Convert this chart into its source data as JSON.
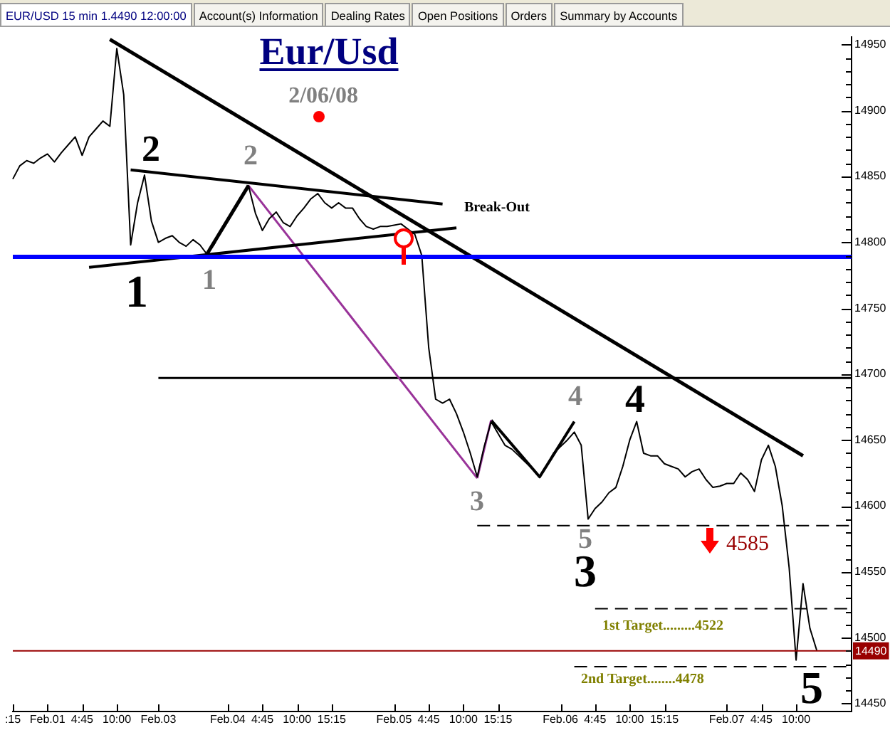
{
  "chart_data": {
    "type": "line",
    "title": "Eur/Usd",
    "subtitle": "2/06/08",
    "marker": "none",
    "categories": [
      ":15",
      null,
      null,
      null,
      null,
      "Feb.01",
      null,
      null,
      null,
      null,
      "4:45",
      null,
      null,
      null,
      null,
      "10:00",
      null,
      null,
      null,
      null,
      null,
      "Feb.03",
      null,
      null,
      null,
      null,
      null,
      null,
      null,
      null,
      null,
      "Feb.04",
      null,
      null,
      null,
      null,
      "4:45",
      null,
      null,
      null,
      null,
      "10:00",
      null,
      null,
      null,
      null,
      "15:15",
      null,
      null,
      null,
      null,
      null,
      null,
      null,
      null,
      "Feb.05",
      null,
      null,
      null,
      null,
      "4:45",
      null,
      null,
      null,
      null,
      "10:00",
      null,
      null,
      null,
      null,
      "15:15",
      null,
      null,
      null,
      null,
      null,
      null,
      null,
      null,
      "Feb.06",
      null,
      null,
      null,
      null,
      "4:45",
      null,
      null,
      null,
      null,
      "10:00",
      null,
      null,
      null,
      null,
      "15:15",
      null,
      null,
      null,
      null,
      null,
      null,
      null,
      null,
      "Feb.07",
      null,
      null,
      null,
      null,
      "4:45",
      null,
      null,
      null,
      null,
      "10:00",
      null,
      null,
      null,
      null,
      null,
      null,
      null,
      null
    ],
    "ylim": [
      14444,
      14956
    ],
    "yticks": [
      14450,
      {
        "value": 14460,
        "label": null
      },
      {
        "value": 14470,
        "label": null
      },
      {
        "value": 14480,
        "label": null
      },
      {
        "value": 14490,
        "label": null
      },
      14500,
      {
        "value": 14510,
        "label": null
      },
      {
        "value": 14520,
        "label": null
      },
      {
        "value": 14530,
        "label": null
      },
      {
        "value": 14540,
        "label": null
      },
      14550,
      {
        "value": 14560,
        "label": null
      },
      {
        "value": 14570,
        "label": null
      },
      {
        "value": 14580,
        "label": null
      },
      {
        "value": 14590,
        "label": null
      },
      14600,
      {
        "value": 14610,
        "label": null
      },
      {
        "value": 14620,
        "label": null
      },
      {
        "value": 14630,
        "label": null
      },
      {
        "value": 14640,
        "label": null
      },
      14650,
      {
        "value": 14660,
        "label": null
      },
      {
        "value": 14670,
        "label": null
      },
      {
        "value": 14680,
        "label": null
      },
      {
        "value": 14690,
        "label": null
      },
      14700,
      {
        "value": 14710,
        "label": null
      },
      {
        "value": 14720,
        "label": null
      },
      {
        "value": 14730,
        "label": null
      },
      {
        "value": 14740,
        "label": null
      },
      14750,
      {
        "value": 14760,
        "label": null
      },
      {
        "value": 14770,
        "label": null
      },
      {
        "value": 14780,
        "label": null
      },
      {
        "value": 14790,
        "label": null
      },
      14800,
      {
        "value": 14810,
        "label": null
      },
      {
        "value": 14820,
        "label": null
      },
      {
        "value": 14830,
        "label": null
      },
      {
        "value": 14840,
        "label": null
      },
      14850,
      {
        "value": 14860,
        "label": null
      },
      {
        "value": 14870,
        "label": null
      },
      {
        "value": 14880,
        "label": null
      },
      {
        "value": 14890,
        "label": null
      },
      14900,
      {
        "value": 14910,
        "label": null
      },
      {
        "value": 14920,
        "label": null
      },
      {
        "value": 14930,
        "label": null
      },
      {
        "value": 14940,
        "label": null
      },
      14950
    ],
    "series": [
      {
        "color": "#000000",
        "values": [
          14848,
          14858,
          14862,
          14860,
          14864,
          14867,
          14861,
          14868,
          14874,
          14880,
          14866,
          14880,
          14886,
          14892,
          14888,
          14947,
          14912,
          14798,
          14830,
          14851,
          14816,
          14800,
          14803,
          14805,
          14800,
          14797,
          14802,
          14798,
          14791,
          14798,
          14808,
          14816,
          14825,
          14835,
          14843,
          14822,
          14809,
          14818,
          14823,
          14815,
          14812,
          14820,
          14826,
          14833,
          14837,
          14830,
          14826,
          14830,
          14826,
          14826,
          14818,
          14812,
          14810,
          14812,
          14812,
          14813,
          14814,
          14810,
          14806,
          14790,
          14720,
          14681,
          14678,
          14681,
          14670,
          14656,
          14640,
          14622,
          14645,
          14664,
          14655,
          14646,
          14643,
          14638,
          14633,
          14628,
          14622,
          14630,
          14640,
          14645,
          14650,
          14656,
          14646,
          14590,
          14598,
          14603,
          14610,
          14614,
          14630,
          14650,
          14664,
          14640,
          14638,
          14638,
          14632,
          14630,
          14628,
          14622,
          14626,
          14628,
          14620,
          14614,
          14615,
          14617,
          14617,
          14625,
          14620,
          14611,
          14635,
          14646,
          14630,
          14600,
          14553,
          14483,
          14541,
          14507,
          14490,
          null,
          null,
          null,
          null,
          null
        ]
      },
      {
        "color": "#000000",
        "values": [
          null,
          null,
          null,
          null,
          null,
          null,
          null,
          null,
          null,
          null,
          null,
          null,
          null,
          null,
          14954,
          null,
          null,
          null,
          null,
          null,
          null,
          null,
          null,
          null,
          null,
          null,
          null,
          null,
          null,
          null,
          null,
          null,
          null,
          null,
          null,
          null,
          null,
          null,
          null,
          null,
          null,
          null,
          null,
          null,
          null,
          null,
          null,
          null,
          null,
          null,
          null,
          null,
          null,
          null,
          null,
          null,
          null,
          null,
          null,
          null,
          null,
          null,
          null,
          null,
          null,
          null,
          null,
          null,
          null,
          null,
          null,
          null,
          null,
          null,
          null,
          null,
          null,
          null,
          null,
          null,
          null,
          null,
          null,
          null,
          null,
          null,
          null,
          null,
          null,
          null,
          null,
          null,
          null,
          null,
          null,
          null,
          null,
          null,
          null,
          null,
          null,
          null,
          null,
          null,
          null,
          null,
          null,
          null,
          null,
          null,
          null,
          null,
          null,
          null,
          14638,
          null,
          null,
          null,
          null,
          null,
          null,
          null
        ]
      },
      {
        "color": "#000000",
        "values": [
          null,
          null,
          null,
          null,
          null,
          null,
          null,
          null,
          null,
          null,
          null,
          null,
          null,
          null,
          null,
          null,
          null,
          14855,
          null,
          null,
          null,
          null,
          null,
          null,
          null,
          null,
          null,
          null,
          null,
          null,
          null,
          null,
          null,
          null,
          null,
          null,
          null,
          null,
          null,
          null,
          null,
          null,
          null,
          null,
          null,
          null,
          null,
          null,
          null,
          null,
          null,
          null,
          null,
          null,
          null,
          null,
          null,
          null,
          null,
          null,
          null,
          null,
          14829,
          null,
          null,
          null,
          null,
          null,
          null,
          null,
          null,
          null,
          null,
          null,
          null,
          null,
          null,
          null,
          null,
          null,
          null,
          null,
          null,
          null,
          null,
          null,
          null,
          null,
          null,
          null,
          null,
          null,
          null,
          null,
          null,
          null,
          null,
          null,
          null,
          null,
          null,
          null,
          null,
          null,
          null,
          null,
          null,
          null,
          null,
          null,
          null,
          null,
          null,
          null,
          null,
          null,
          null,
          null,
          null,
          null,
          null,
          null
        ]
      },
      {
        "color": "#000000",
        "values": [
          null,
          null,
          null,
          null,
          null,
          null,
          null,
          null,
          null,
          null,
          null,
          14781,
          null,
          null,
          null,
          null,
          null,
          null,
          null,
          null,
          null,
          null,
          null,
          null,
          null,
          null,
          null,
          null,
          null,
          null,
          null,
          null,
          null,
          null,
          null,
          null,
          null,
          null,
          null,
          null,
          null,
          null,
          null,
          null,
          null,
          null,
          null,
          null,
          null,
          null,
          null,
          null,
          null,
          null,
          null,
          null,
          null,
          null,
          null,
          null,
          null,
          null,
          null,
          null,
          14811,
          null,
          null,
          null,
          null,
          null,
          null,
          null,
          null,
          null,
          null,
          null,
          null,
          null,
          null,
          null,
          null,
          null,
          null,
          null,
          null,
          null,
          null,
          null,
          null,
          null,
          null,
          null,
          null,
          null,
          null,
          null,
          null,
          null,
          null,
          null,
          null,
          null,
          null,
          null,
          null,
          null,
          null,
          null,
          null,
          null,
          null,
          null,
          null,
          null,
          null,
          null,
          null,
          null,
          null,
          null,
          null,
          null
        ]
      },
      {
        "color": "#000000",
        "values": [
          null,
          null,
          null,
          null,
          null,
          null,
          null,
          null,
          null,
          null,
          null,
          null,
          null,
          null,
          null,
          null,
          null,
          null,
          null,
          null,
          null,
          null,
          null,
          null,
          null,
          null,
          null,
          null,
          14791,
          null,
          null,
          null,
          null,
          null,
          14843,
          null,
          null,
          null,
          null,
          null,
          null,
          null,
          null,
          null,
          null,
          null,
          null,
          null,
          null,
          null,
          null,
          null,
          null,
          null,
          null,
          null,
          null,
          null,
          null,
          null,
          null,
          null,
          null,
          null,
          null,
          null,
          null,
          null,
          null,
          null,
          null,
          null,
          null,
          null,
          null,
          null,
          null,
          null,
          null,
          null,
          null,
          null,
          null,
          null,
          null,
          null,
          null,
          null,
          null,
          null,
          null,
          null,
          null,
          null,
          null,
          null,
          null,
          null,
          null,
          null,
          null,
          null,
          null,
          null,
          null,
          null,
          null,
          null,
          null,
          null,
          null,
          null,
          null,
          null,
          null,
          null,
          null,
          null,
          null,
          null,
          null,
          null
        ]
      },
      {
        "color": "#993399",
        "values": [
          null,
          null,
          null,
          null,
          null,
          null,
          null,
          null,
          null,
          null,
          null,
          null,
          null,
          null,
          null,
          null,
          null,
          null,
          null,
          null,
          null,
          null,
          null,
          null,
          null,
          null,
          null,
          null,
          null,
          null,
          null,
          null,
          null,
          null,
          14843,
          null,
          null,
          null,
          null,
          null,
          null,
          null,
          null,
          null,
          null,
          null,
          null,
          null,
          null,
          null,
          null,
          null,
          null,
          null,
          null,
          null,
          null,
          null,
          null,
          null,
          null,
          null,
          null,
          null,
          null,
          null,
          null,
          14621,
          null,
          null,
          null,
          null,
          null,
          null,
          null,
          null,
          null,
          null,
          null,
          null,
          null,
          null,
          null,
          null,
          null,
          null,
          null,
          null,
          null,
          null,
          null,
          null,
          null,
          null,
          null,
          null,
          null,
          null,
          null,
          null,
          null,
          null,
          null,
          null,
          null,
          null,
          null,
          null,
          null,
          null,
          null,
          null,
          null,
          null,
          null,
          null,
          null,
          null,
          null,
          null,
          null,
          null
        ]
      },
      {
        "color": "#993399",
        "values": [
          null,
          null,
          null,
          null,
          null,
          null,
          null,
          null,
          null,
          null,
          null,
          null,
          null,
          null,
          null,
          null,
          null,
          null,
          null,
          null,
          null,
          null,
          null,
          null,
          null,
          null,
          null,
          null,
          null,
          null,
          null,
          null,
          null,
          null,
          null,
          null,
          null,
          null,
          null,
          null,
          null,
          null,
          null,
          null,
          null,
          null,
          null,
          null,
          null,
          null,
          null,
          null,
          null,
          null,
          null,
          null,
          null,
          null,
          null,
          null,
          null,
          null,
          null,
          null,
          null,
          null,
          null,
          14621,
          null,
          14665,
          null,
          null,
          null,
          null,
          null,
          null,
          null,
          null,
          null,
          null,
          null,
          null,
          null,
          null,
          null,
          null,
          null,
          null,
          null,
          null,
          null,
          null,
          null,
          null,
          null,
          null,
          null,
          null,
          null,
          null,
          null,
          null,
          null,
          null,
          null,
          null,
          null,
          null,
          null,
          null,
          null,
          null,
          null,
          null,
          null,
          null,
          null,
          null,
          null,
          null,
          null,
          null
        ]
      },
      {
        "color": "#000000",
        "values": [
          null,
          null,
          null,
          null,
          null,
          null,
          null,
          null,
          null,
          null,
          null,
          null,
          null,
          null,
          null,
          null,
          null,
          null,
          null,
          null,
          null,
          null,
          null,
          null,
          null,
          null,
          null,
          null,
          null,
          null,
          null,
          null,
          null,
          null,
          null,
          null,
          null,
          null,
          null,
          null,
          null,
          null,
          null,
          null,
          null,
          null,
          null,
          null,
          null,
          null,
          null,
          null,
          null,
          null,
          null,
          null,
          null,
          null,
          null,
          null,
          null,
          null,
          null,
          null,
          null,
          null,
          null,
          null,
          null,
          14665,
          null,
          null,
          null,
          null,
          null,
          null,
          14622,
          null,
          null,
          null,
          null,
          14664,
          null,
          null,
          null,
          null,
          null,
          null,
          null,
          null,
          null,
          null,
          null,
          null,
          null,
          null,
          null,
          null,
          null,
          null,
          null,
          null,
          null,
          null,
          null,
          null,
          null,
          null,
          null,
          null,
          null,
          null,
          null,
          null,
          null,
          null,
          null,
          null,
          null,
          null,
          null,
          null
        ]
      },
      {
        "color": "#000000",
        "values": [
          null,
          null,
          null,
          null,
          null,
          null,
          null,
          null,
          null,
          null,
          null,
          null,
          null,
          null,
          null,
          null,
          null,
          null,
          null,
          null,
          null,
          14697,
          null,
          null,
          null,
          null,
          null,
          null,
          null,
          null,
          null,
          null,
          null,
          null,
          null,
          null,
          null,
          null,
          null,
          null,
          null,
          null,
          null,
          null,
          null,
          null,
          null,
          null,
          null,
          null,
          null,
          null,
          null,
          null,
          null,
          null,
          null,
          null,
          null,
          null,
          null,
          null,
          null,
          null,
          null,
          null,
          null,
          null,
          null,
          null,
          null,
          null,
          null,
          null,
          null,
          null,
          null,
          null,
          null,
          null,
          null,
          null,
          null,
          null,
          null,
          null,
          null,
          null,
          null,
          null,
          null,
          null,
          null,
          null,
          null,
          null,
          null,
          null,
          null,
          null,
          null,
          null,
          null,
          null,
          null,
          null,
          null,
          null,
          null,
          null,
          null,
          null,
          null,
          null,
          null,
          null,
          null,
          null,
          null,
          null,
          null,
          14697
        ]
      },
      {
        "color": "#000000",
        "line_style": "dashed",
        "values": [
          null,
          null,
          null,
          null,
          null,
          null,
          null,
          null,
          null,
          null,
          null,
          null,
          null,
          null,
          null,
          null,
          null,
          null,
          null,
          null,
          null,
          null,
          null,
          null,
          null,
          null,
          null,
          null,
          null,
          null,
          null,
          null,
          null,
          null,
          null,
          null,
          null,
          null,
          null,
          null,
          null,
          null,
          null,
          null,
          null,
          null,
          null,
          null,
          null,
          null,
          null,
          null,
          null,
          null,
          null,
          null,
          null,
          null,
          null,
          null,
          null,
          null,
          null,
          null,
          null,
          null,
          null,
          14585,
          null,
          null,
          null,
          null,
          null,
          null,
          null,
          null,
          null,
          null,
          null,
          null,
          null,
          null,
          null,
          null,
          null,
          null,
          null,
          null,
          null,
          null,
          null,
          null,
          null,
          null,
          null,
          null,
          null,
          null,
          null,
          null,
          null,
          null,
          null,
          null,
          null,
          null,
          null,
          null,
          null,
          null,
          null,
          null,
          null,
          null,
          null,
          null,
          null,
          null,
          null,
          null,
          null,
          14585
        ]
      },
      {
        "color": "#000000",
        "line_style": "dashed",
        "values": [
          null,
          null,
          null,
          null,
          null,
          null,
          null,
          null,
          null,
          null,
          null,
          null,
          null,
          null,
          null,
          null,
          null,
          null,
          null,
          null,
          null,
          null,
          null,
          null,
          null,
          null,
          null,
          null,
          null,
          null,
          null,
          null,
          null,
          null,
          null,
          null,
          null,
          null,
          null,
          null,
          null,
          null,
          null,
          null,
          null,
          null,
          null,
          null,
          null,
          null,
          null,
          null,
          null,
          null,
          null,
          null,
          null,
          null,
          null,
          null,
          null,
          null,
          null,
          null,
          null,
          null,
          null,
          null,
          null,
          null,
          null,
          null,
          null,
          null,
          null,
          null,
          null,
          null,
          null,
          null,
          null,
          null,
          null,
          null,
          14522,
          null,
          null,
          null,
          null,
          null,
          null,
          null,
          null,
          null,
          null,
          null,
          null,
          null,
          null,
          null,
          null,
          null,
          null,
          null,
          null,
          null,
          null,
          null,
          null,
          null,
          null,
          null,
          null,
          null,
          null,
          null,
          null,
          null,
          null,
          null,
          null,
          14522
        ]
      },
      {
        "color": "#000000",
        "line_style": "dashed",
        "values": [
          null,
          null,
          null,
          null,
          null,
          null,
          null,
          null,
          null,
          null,
          null,
          null,
          null,
          null,
          null,
          null,
          null,
          null,
          null,
          null,
          null,
          null,
          null,
          null,
          null,
          null,
          null,
          null,
          null,
          null,
          null,
          null,
          null,
          null,
          null,
          null,
          null,
          null,
          null,
          null,
          null,
          null,
          null,
          null,
          null,
          null,
          null,
          null,
          null,
          null,
          null,
          null,
          null,
          null,
          null,
          null,
          null,
          null,
          null,
          null,
          null,
          null,
          null,
          null,
          null,
          null,
          null,
          null,
          null,
          null,
          null,
          null,
          null,
          null,
          null,
          null,
          null,
          null,
          null,
          null,
          null,
          14478,
          null,
          null,
          null,
          null,
          null,
          null,
          null,
          null,
          null,
          null,
          null,
          null,
          null,
          null,
          null,
          null,
          null,
          null,
          null,
          null,
          null,
          null,
          null,
          null,
          null,
          null,
          null,
          null,
          null,
          null,
          null,
          null,
          null,
          null,
          null,
          null,
          null,
          null,
          null,
          14478
        ]
      }
    ],
    "ref_lines": [
      {
        "axis": "y",
        "value": 14789,
        "color": "#0000ff"
      },
      {
        "axis": "y",
        "value": 14490,
        "label": "14490",
        "color": "#990000"
      }
    ],
    "annotations": [
      "EUR/USD 15 min 1.4490 12:00:00",
      "Account(s) Information",
      "Dealing Rates",
      "Open Positions",
      "Orders",
      "Summary by Accounts",
      "Break-Out",
      {
        "text": "2",
        "y": 14851
      },
      {
        "text": "1",
        "y": 14798
      },
      {
        "text": "2",
        "y": 14843
      },
      {
        "text": "1",
        "y": 14791
      },
      {
        "text": "3",
        "y": 14622
      },
      {
        "text": "4",
        "y": 14664
      },
      {
        "text": "4",
        "y": 14664
      },
      {
        "text": "5",
        "y": 14590
      },
      {
        "text": "3",
        "y": 14590
      },
      {
        "text": "4585",
        "y": 14585
      },
      {
        "text": "1st Target.........4522",
        "y": 14522
      },
      {
        "text": "2nd Target........4478",
        "y": 14478
      },
      {
        "text": "5",
        "y": 14483
      }
    ]
  }
}
